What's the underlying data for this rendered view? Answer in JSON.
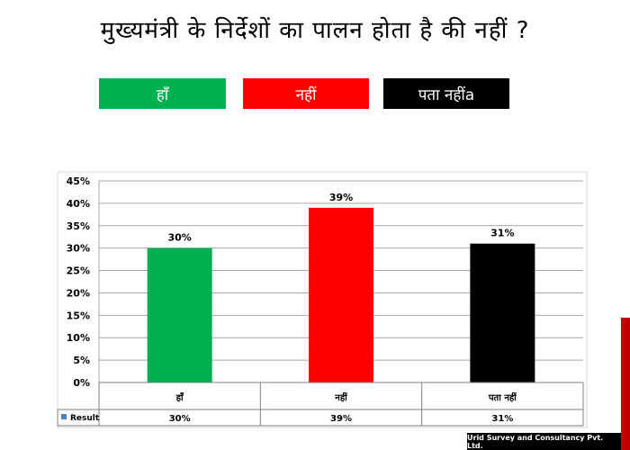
{
  "title": "मुख्यमंत्री के निर्देशों का पालन होता है की नहीं ?",
  "legend_boxes": {
    "yes": "हाँ",
    "no": "नहीं",
    "dont_know": "पता नहींa"
  },
  "colors": {
    "yes": "#00b050",
    "no": "#ff0000",
    "dont_know": "#000000",
    "series_marker": "#4f81bd"
  },
  "chart_data": {
    "type": "bar",
    "categories": [
      "हाँ",
      "नहीं",
      "पता नहीं"
    ],
    "values": [
      30,
      39,
      31
    ],
    "value_labels": [
      "30%",
      "39%",
      "31%"
    ],
    "series": [
      {
        "name": "Result",
        "values": [
          30,
          39,
          31
        ]
      }
    ],
    "yticks": [
      "0%",
      "5%",
      "10%",
      "15%",
      "20%",
      "25%",
      "30%",
      "35%",
      "40%",
      "45%"
    ],
    "ylim": [
      0,
      45
    ],
    "grid": true,
    "data_table": {
      "series_label": "Result",
      "values": [
        "30%",
        "39%",
        "31%"
      ]
    }
  },
  "footer": "Urid Survey and Consultancy Pvt. Ltd."
}
